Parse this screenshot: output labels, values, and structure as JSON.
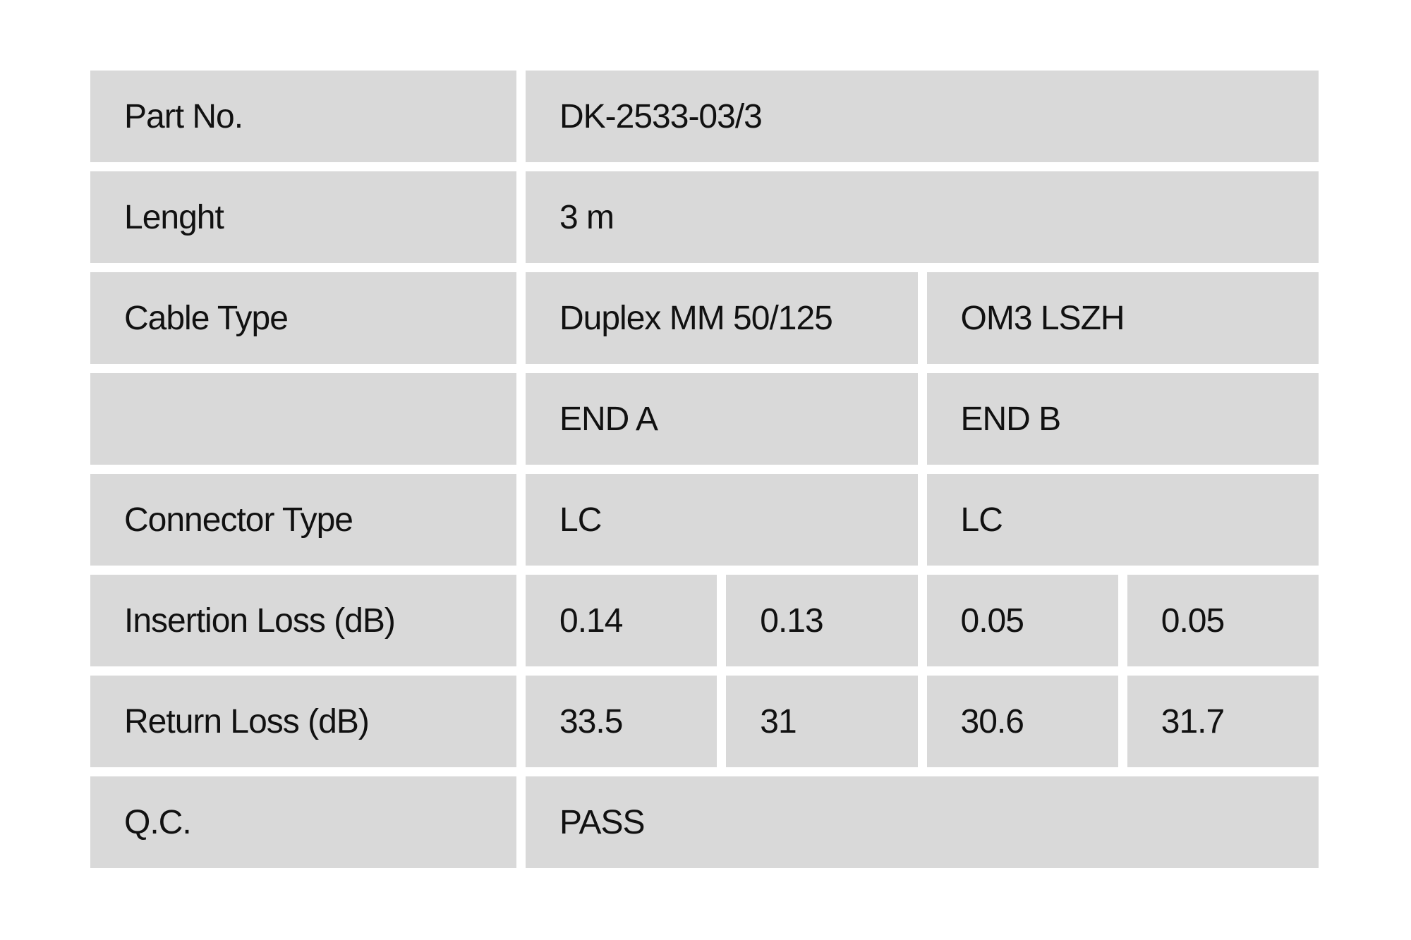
{
  "table": {
    "part_no": {
      "label": "Part No.",
      "value": "DK-2533-03/3"
    },
    "length": {
      "label": "Lenght",
      "value": "3 m"
    },
    "cable_type": {
      "label": "Cable Type",
      "end_a": "Duplex MM 50/125",
      "end_b": "OM3 LSZH"
    },
    "ends": {
      "label": "",
      "end_a": "END A",
      "end_b": "END B"
    },
    "connector_type": {
      "label": "Connector Type",
      "end_a": "LC",
      "end_b": "LC"
    },
    "insertion_loss": {
      "label": "Insertion Loss (dB)",
      "values": [
        "0.14",
        "0.13",
        "0.05",
        "0.05"
      ]
    },
    "return_loss": {
      "label": "Return Loss (dB)",
      "values": [
        "33.5",
        "31",
        "30.6",
        "31.7"
      ]
    },
    "qc": {
      "label": "Q.C.",
      "value": "PASS"
    }
  },
  "colors": {
    "cell_bg": "#d9d9d9",
    "page_bg": "#ffffff",
    "text": "#111111"
  }
}
